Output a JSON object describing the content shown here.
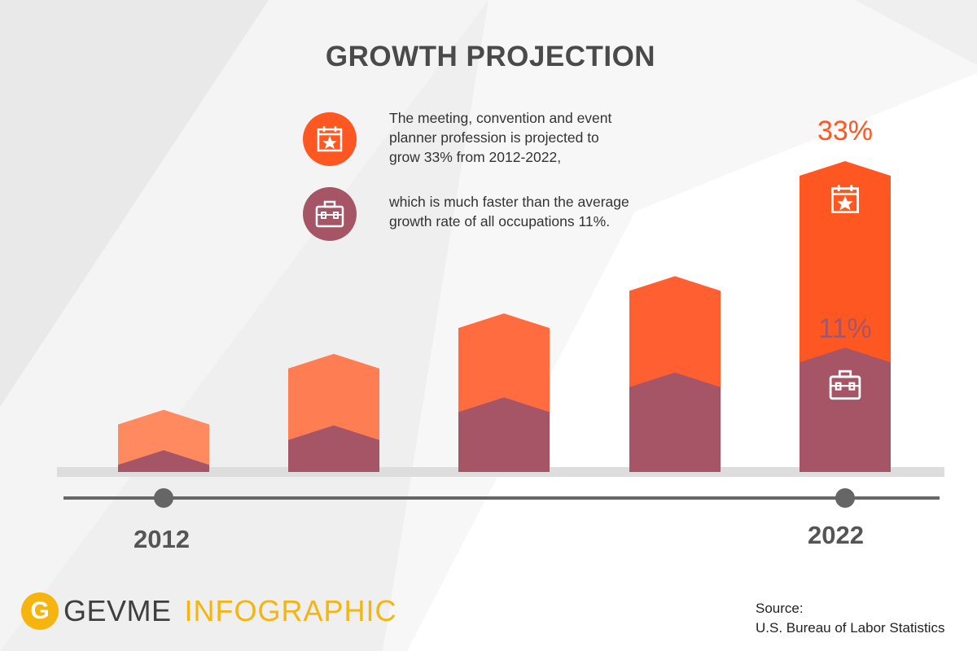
{
  "title": "GROWTH PROJECTION",
  "legend": [
    {
      "icon": "calendar-star-icon",
      "color": "#ff5722",
      "text_lines": [
        "The meeting, convention and event",
        "planner profession is projected to",
        "grow 33% from 2012-2022,"
      ]
    },
    {
      "icon": "briefcase-icon",
      "color": "#a65566",
      "text_lines": [
        "which is much faster than the average",
        "growth rate of all occupations 11%."
      ]
    }
  ],
  "chart_data": {
    "type": "bar",
    "categories": [
      "2012",
      "",
      "",
      "",
      "2022"
    ],
    "series": [
      {
        "name": "Meeting, convention and event planners",
        "values": [
          20,
          38,
          51,
          63,
          100
        ],
        "colors": [
          "#ff8a60",
          "#ff7d52",
          "#ff6c40",
          "#ff5f31",
          "#ff5722"
        ]
      },
      {
        "name": "All occupations",
        "values": [
          7,
          15,
          24,
          32,
          40
        ],
        "color": "#a65566"
      }
    ],
    "ylim": [
      0,
      100
    ],
    "end_labels": {
      "series1": "33%",
      "series2": "11%"
    },
    "axis_labels": {
      "start": "2012",
      "end": "2022"
    }
  },
  "source": {
    "label": "Source:",
    "text": "U.S. Bureau of Labor Statistics"
  },
  "logo": {
    "mark": "G",
    "brand": "GEVME",
    "product": "INFOGRAPHIC"
  }
}
